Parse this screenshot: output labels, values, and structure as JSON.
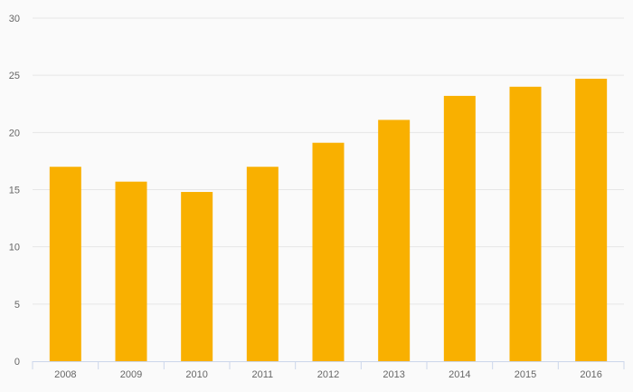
{
  "chart_data": {
    "type": "bar",
    "categories": [
      "2008",
      "2009",
      "2010",
      "2011",
      "2012",
      "2013",
      "2014",
      "2015",
      "2016"
    ],
    "values": [
      17.0,
      15.7,
      14.8,
      17.0,
      19.1,
      21.1,
      23.2,
      24.0,
      24.7
    ],
    "y_ticks": [
      "0",
      "5",
      "10",
      "15",
      "20",
      "25",
      "30"
    ],
    "ylim": [
      0,
      30
    ],
    "grid": true,
    "bar_color": "#f9b000",
    "grid_color": "#e6e6e6",
    "axis_color": "#ccd6eb"
  }
}
